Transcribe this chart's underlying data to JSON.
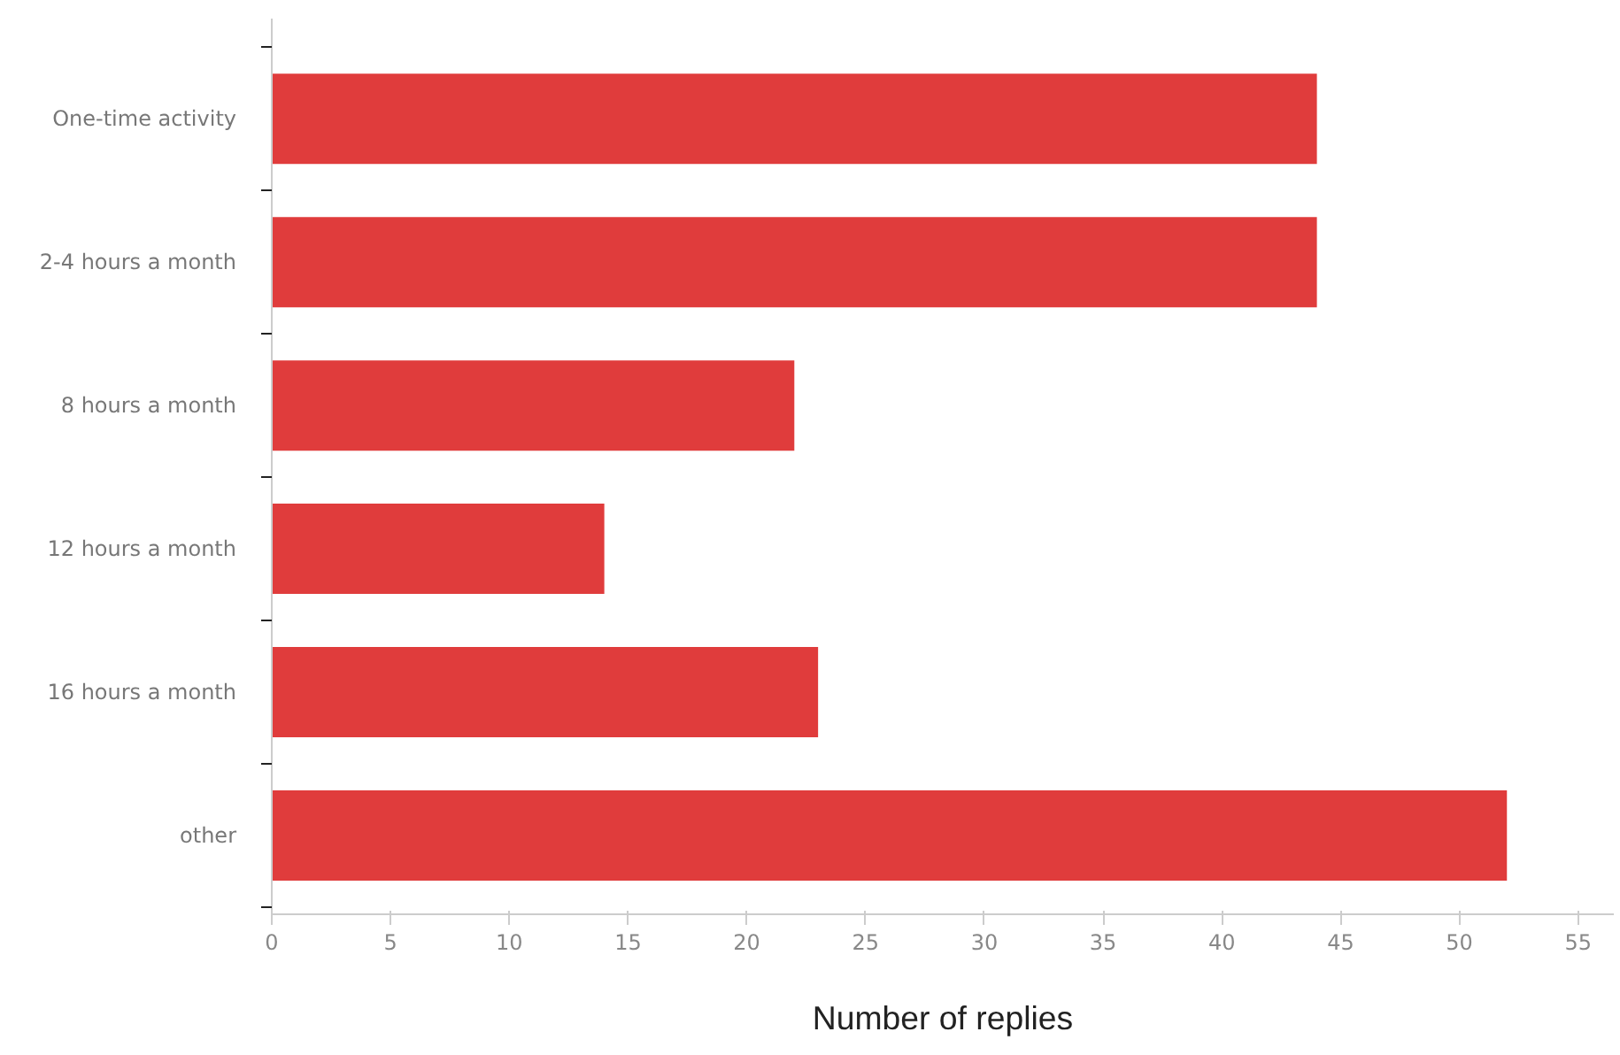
{
  "chart_data": {
    "type": "bar",
    "orientation": "horizontal",
    "xlabel": "Number of replies",
    "categories": [
      "One-time activity",
      "2-4 hours a month",
      "8 hours a month",
      "12 hours a month",
      "16 hours a month",
      "other"
    ],
    "values": [
      44,
      44,
      22,
      14,
      23,
      52
    ],
    "color": "#e03c3c",
    "xlim": [
      0,
      56.5
    ],
    "xticks": [
      0,
      5,
      10,
      15,
      20,
      25,
      30,
      35,
      40,
      45,
      50,
      55
    ]
  }
}
